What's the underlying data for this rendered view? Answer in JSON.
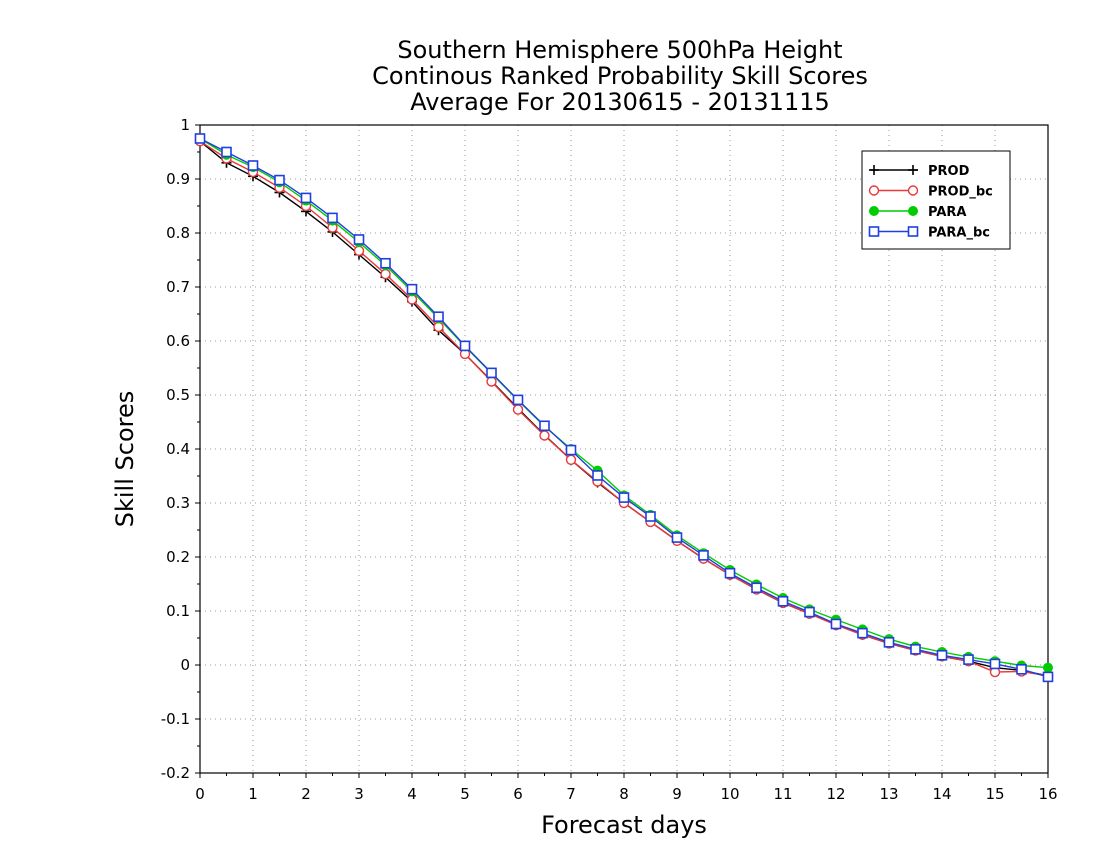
{
  "chart_data": {
    "type": "line",
    "title": [
      "Southern Hemisphere 500hPa Height",
      "Continous Ranked Probability Skill Scores",
      "Average For 20130615 - 20131115"
    ],
    "xlabel": "Forecast days",
    "ylabel": "Skill Scores",
    "xlim": [
      0,
      16
    ],
    "ylim": [
      -0.2,
      1
    ],
    "xticks": [
      "0",
      "1",
      "2",
      "3",
      "4",
      "5",
      "6",
      "7",
      "8",
      "9",
      "10",
      "11",
      "12",
      "13",
      "14",
      "15",
      "16"
    ],
    "yticks": [
      "1",
      "0.9",
      "0.8",
      "0.7",
      "0.6",
      "0.5",
      "0.4",
      "0.3",
      "0.2",
      "0.1",
      "0",
      "-0.1",
      "-0.2"
    ],
    "grid": true,
    "legend_position": "top-right",
    "x": [
      0,
      0.5,
      1,
      1.5,
      2,
      2.5,
      3,
      3.5,
      4,
      4.5,
      5,
      5.5,
      6,
      6.5,
      7,
      7.5,
      8,
      8.5,
      9,
      9.5,
      10,
      10.5,
      11,
      11.5,
      12,
      12.5,
      13,
      13.5,
      14,
      14.5,
      15,
      15.5,
      16
    ],
    "series": [
      {
        "name": "PROD",
        "color": "#000000",
        "marker": "plus",
        "values": [
          0.97,
          0.93,
          0.905,
          0.875,
          0.84,
          0.802,
          0.76,
          0.718,
          0.673,
          0.62,
          0.576,
          0.526,
          0.475,
          0.426,
          0.38,
          0.338,
          0.3,
          0.265,
          0.23,
          0.197,
          0.167,
          0.14,
          0.115,
          0.095,
          0.075,
          0.056,
          0.04,
          0.027,
          0.016,
          0.007,
          -0.005,
          -0.01,
          -0.02
        ]
      },
      {
        "name": "PROD_bc",
        "color": "#e8383a",
        "marker": "circle",
        "values": [
          0.97,
          0.938,
          0.913,
          0.884,
          0.85,
          0.81,
          0.767,
          0.724,
          0.677,
          0.626,
          0.576,
          0.525,
          0.473,
          0.425,
          0.38,
          0.34,
          0.3,
          0.265,
          0.23,
          0.197,
          0.167,
          0.14,
          0.115,
          0.095,
          0.074,
          0.056,
          0.04,
          0.027,
          0.016,
          0.007,
          -0.013,
          -0.012,
          -0.02
        ]
      },
      {
        "name": "PARA",
        "color": "#00cc00",
        "marker": "dot",
        "values": [
          0.975,
          0.945,
          0.922,
          0.894,
          0.86,
          0.823,
          0.783,
          0.74,
          0.692,
          0.642,
          0.59,
          0.54,
          0.49,
          0.442,
          0.4,
          0.36,
          0.314,
          0.278,
          0.24,
          0.207,
          0.176,
          0.149,
          0.124,
          0.103,
          0.084,
          0.066,
          0.048,
          0.034,
          0.024,
          0.015,
          0.007,
          -0.001,
          -0.005
        ]
      },
      {
        "name": "PARA_bc",
        "color": "#1f3fe0",
        "marker": "square",
        "values": [
          0.975,
          0.95,
          0.925,
          0.898,
          0.865,
          0.828,
          0.788,
          0.744,
          0.696,
          0.645,
          0.591,
          0.541,
          0.491,
          0.443,
          0.398,
          0.351,
          0.31,
          0.275,
          0.236,
          0.203,
          0.17,
          0.143,
          0.118,
          0.098,
          0.076,
          0.059,
          0.042,
          0.029,
          0.018,
          0.01,
          0.002,
          -0.008,
          -0.022
        ]
      }
    ]
  }
}
